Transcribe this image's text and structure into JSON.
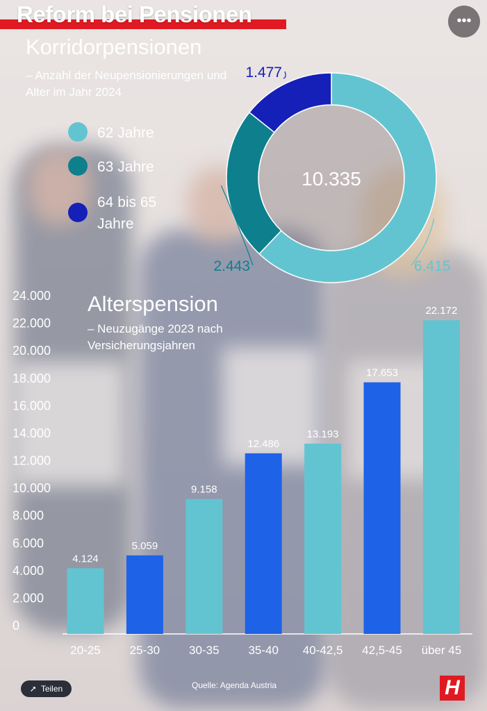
{
  "headline": "Reform bei Pensionen",
  "more_icon": "more-horizontal-icon",
  "more_glyph": "•••",
  "donut": {
    "title": "Korridorpensionen",
    "subtitle": "– Anzahl der Neupensionierungen und Alter im Jahr 2024",
    "total": "10.335",
    "legend": [
      {
        "label": "62 Jahre",
        "color": "#63c4d1"
      },
      {
        "label": "63 Jahre",
        "color": "#0e7f8d"
      },
      {
        "label": "64 bis 65 Jahre",
        "color": "#1520b8"
      }
    ]
  },
  "bar_title": "Alterspension",
  "bar_subtitle": "– Neuzugänge 2023 nach Versicherungsjahren",
  "source": "Quelle:  Agenda Austria",
  "share_label": "Teilen",
  "share_icon": "share-icon",
  "logo_text": "H",
  "chart_data": [
    {
      "type": "pie",
      "title": "Korridorpensionen",
      "categories": [
        "62 Jahre",
        "63 Jahre",
        "64 bis 65 Jahre"
      ],
      "values": [
        6415,
        2443,
        1477
      ],
      "value_labels": [
        "6.415",
        "2.443",
        "1.477"
      ],
      "colors": [
        "#63c4d1",
        "#0e7f8d",
        "#1520b8"
      ],
      "center_label": "10.335"
    },
    {
      "type": "bar",
      "title": "Alterspension",
      "categories": [
        "20-25",
        "25-30",
        "30-35",
        "35-40",
        "40-42,5",
        "42,5-45",
        "über 45"
      ],
      "values": [
        4124,
        5059,
        9158,
        12486,
        13193,
        17653,
        22172
      ],
      "value_labels": [
        "4.124",
        "5.059",
        "9.158",
        "12.486",
        "13.193",
        "17.653",
        "22.172"
      ],
      "colors": [
        "#63c4d1",
        "#1e62e8",
        "#63c4d1",
        "#1e62e8",
        "#63c4d1",
        "#1e62e8",
        "#63c4d1"
      ],
      "yticks": [
        0,
        2000,
        4000,
        6000,
        8000,
        10000,
        12000,
        14000,
        16000,
        18000,
        20000,
        22000,
        24000
      ],
      "ytick_labels": [
        "0",
        "2.000",
        "4.000",
        "6.000",
        "8.000",
        "10.000",
        "12.000",
        "14.000",
        "16.000",
        "18.000",
        "20.000",
        "22.000",
        "24.000"
      ],
      "ylim": [
        0,
        24000
      ]
    }
  ]
}
